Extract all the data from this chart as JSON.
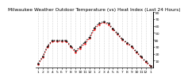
{
  "title": "Milwaukee Weather Outdoor Temperature (vs) Heat Index (Last 24 Hours)",
  "x_labels": [
    "1",
    "2",
    "3",
    "4",
    "5",
    "6",
    "7",
    "8",
    "9",
    "10",
    "11",
    "12",
    "1",
    "2",
    "3",
    "4",
    "5",
    "6",
    "7",
    "8",
    "9",
    "10",
    "11",
    "12",
    "1"
  ],
  "temp_values": [
    5,
    15,
    30,
    38,
    38,
    38,
    38,
    30,
    22,
    28,
    35,
    42,
    55,
    62,
    65,
    62,
    55,
    48,
    40,
    35,
    30,
    22,
    15,
    8,
    2
  ],
  "heat_values": [
    6,
    16,
    31,
    39,
    39,
    39,
    39,
    31,
    24,
    30,
    37,
    44,
    57,
    64,
    66,
    64,
    56,
    49,
    41,
    36,
    31,
    23,
    16,
    9,
    3
  ],
  "ylim": [
    0,
    80
  ],
  "ytick_values": [
    10,
    20,
    30,
    40,
    50,
    60,
    70,
    80
  ],
  "ytick_labels": [
    "10",
    "20",
    "30",
    "40",
    "50",
    "60",
    "70",
    "80"
  ],
  "temp_color": "#ff0000",
  "heat_color": "#000000",
  "bg_color": "#ffffff",
  "grid_color": "#999999",
  "title_fontsize": 4.2,
  "tick_fontsize": 3.2
}
